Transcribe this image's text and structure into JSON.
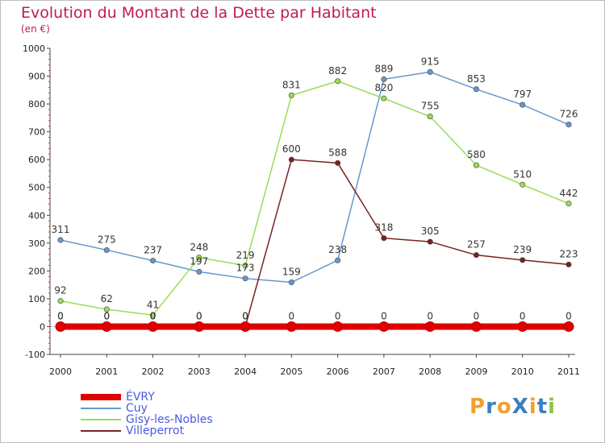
{
  "title": "Evolution du Montant de la Dette par Habitant",
  "subtitle": "(en €)",
  "logo": {
    "text": "ProXiti",
    "colors": [
      "#f0a030",
      "#3a7fc0",
      "#f0a030",
      "#3a7fc0",
      "#f0a030",
      "#3a7fc0",
      "#8bc34a"
    ]
  },
  "chart_data": {
    "type": "line",
    "x": [
      "2000",
      "2001",
      "2002",
      "2003",
      "2004",
      "2005",
      "2006",
      "2007",
      "2008",
      "2009",
      "2010",
      "2011"
    ],
    "ylim": [
      -100,
      1000
    ],
    "yticks": [
      "-100",
      "0",
      "100",
      "200",
      "300",
      "400",
      "500",
      "600",
      "700",
      "800",
      "900",
      "1000"
    ],
    "grid": false,
    "legend_position": "bottom-left",
    "series": [
      {
        "name": "ÉVRY",
        "color": "#e00000",
        "values": [
          0,
          0,
          0,
          0,
          0,
          0,
          0,
          0,
          0,
          0,
          0,
          0
        ],
        "labels": [
          "0",
          "0",
          "0",
          "0",
          "0",
          "0",
          "0",
          "0",
          "0",
          "0",
          "0",
          "0"
        ]
      },
      {
        "name": "Cuy",
        "color": "#6699cc",
        "values": [
          311,
          275,
          237,
          197,
          173,
          159,
          238,
          889,
          915,
          853,
          797,
          726
        ],
        "labels": [
          "311",
          "275",
          "237",
          "197",
          "173",
          "159",
          "238",
          "889",
          "915",
          "853",
          "797",
          "726"
        ]
      },
      {
        "name": "Gisy-les-Nobles",
        "color": "#99dd55",
        "values": [
          92,
          62,
          41,
          248,
          219,
          831,
          882,
          820,
          755,
          580,
          510,
          442
        ],
        "labels": [
          "92",
          "62",
          "41",
          "248",
          "219",
          "831",
          "882",
          "820",
          "755",
          "580",
          "510",
          "442"
        ]
      },
      {
        "name": "Villeperrot",
        "color": "#772222",
        "values": [
          0,
          0,
          0,
          0,
          0,
          600,
          588,
          318,
          305,
          257,
          239,
          223
        ],
        "labels": [
          "0",
          "0",
          "0",
          "0",
          "0",
          "600",
          "588",
          "318",
          "305",
          "257",
          "239",
          "223"
        ]
      }
    ]
  }
}
